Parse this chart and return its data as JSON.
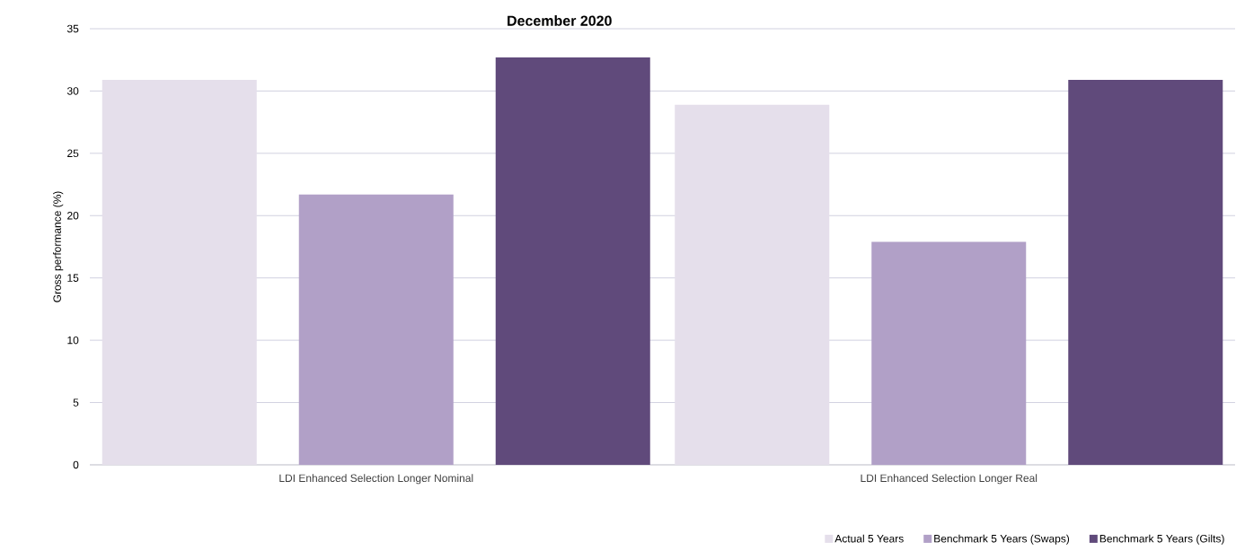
{
  "chart_data": {
    "type": "bar",
    "title": "December 2020",
    "ylabel": "Gross performance (%)",
    "categories": [
      "LDI Enhanced Selection Longer Nominal",
      "LDI Enhanced Selection Longer Real"
    ],
    "series": [
      {
        "name": "Actual 5 Years",
        "color": "#e5dfeb",
        "values": [
          30.9,
          28.9
        ]
      },
      {
        "name": "Benchmark 5 Years (Swaps)",
        "color": "#b1a0c7",
        "values": [
          21.7,
          17.9
        ]
      },
      {
        "name": "Benchmark 5 Years (Gilts)",
        "color": "#604a7b",
        "values": [
          32.7,
          30.9
        ]
      }
    ],
    "ylim": [
      0,
      35
    ],
    "yticks": [
      0,
      5,
      10,
      15,
      20,
      25,
      30,
      35
    ],
    "grid": "y",
    "legend": "bottom right"
  }
}
